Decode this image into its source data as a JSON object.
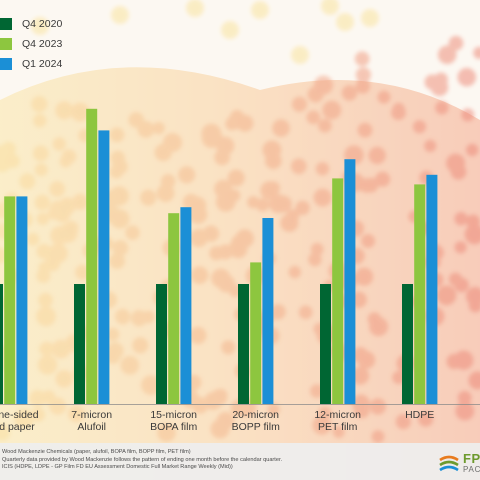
{
  "legend": [
    {
      "name": "Q4 2020",
      "color": "#006633"
    },
    {
      "name": "Q4 2023",
      "color": "#8dc63f"
    },
    {
      "name": "Q1 2024",
      "color": "#1b8fd6"
    }
  ],
  "chart_data": {
    "type": "bar",
    "title": "",
    "xlabel": "",
    "ylabel": "",
    "categories": [
      [
        "m one-sided",
        "ated paper"
      ],
      [
        "7-micron",
        "Alufoil"
      ],
      [
        "15-micron",
        "BOPA film"
      ],
      [
        "20-micron",
        "BOPP film"
      ],
      [
        "12-micron",
        "PET film"
      ],
      [
        "HDPE"
      ]
    ],
    "series": [
      {
        "name": "Q4 2020",
        "values": [
          100,
          100,
          100,
          100,
          100,
          100
        ]
      },
      {
        "name": "Q4 2023",
        "values": [
          173,
          246,
          159,
          118,
          188,
          183
        ]
      },
      {
        "name": "Q1 2024",
        "values": [
          173,
          228,
          164,
          155,
          204,
          191
        ]
      }
    ],
    "ylim": [
      0,
      300
    ],
    "legend_position": "top-left",
    "grid": false
  },
  "footer": {
    "notes": [
      "Wood Mackenzie Chemicals (paper, alufoil, BOPA film, BOPP film, PET film)",
      "Quarterly data provided by Wood Mackenzie follows the pattern of ending one month before the calendar quarter.",
      "ICIS (HDPE, LDPE - GP Film FD EU Assessment Domestic Full Market Range Weekly (Mid))"
    ],
    "brand_main": "FP",
    "brand_sub": "PAC"
  }
}
